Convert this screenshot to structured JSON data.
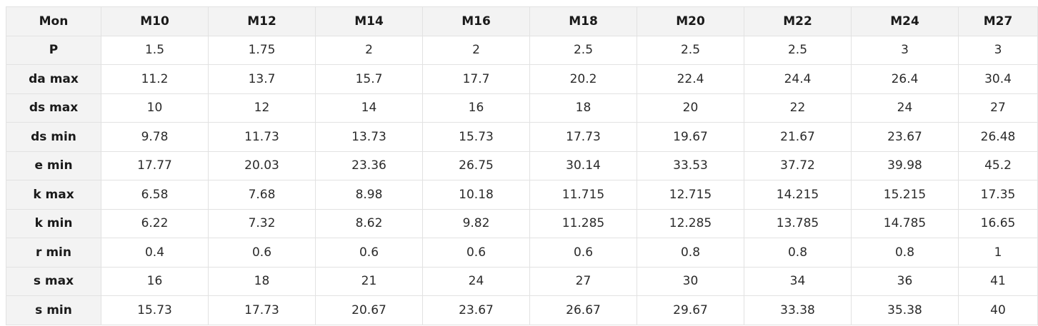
{
  "table": {
    "columns": [
      "Mon",
      "M10",
      "M12",
      "M14",
      "M16",
      "M18",
      "M20",
      "M22",
      "M24",
      "M27"
    ],
    "rows": [
      {
        "label": "P",
        "values": [
          "1.5",
          "1.75",
          "2",
          "2",
          "2.5",
          "2.5",
          "2.5",
          "3",
          "3"
        ]
      },
      {
        "label": "da max",
        "values": [
          "11.2",
          "13.7",
          "15.7",
          "17.7",
          "20.2",
          "22.4",
          "24.4",
          "26.4",
          "30.4"
        ]
      },
      {
        "label": "ds max",
        "values": [
          "10",
          "12",
          "14",
          "16",
          "18",
          "20",
          "22",
          "24",
          "27"
        ]
      },
      {
        "label": "ds min",
        "values": [
          "9.78",
          "11.73",
          "13.73",
          "15.73",
          "17.73",
          "19.67",
          "21.67",
          "23.67",
          "26.48"
        ]
      },
      {
        "label": "e min",
        "values": [
          "17.77",
          "20.03",
          "23.36",
          "26.75",
          "30.14",
          "33.53",
          "37.72",
          "39.98",
          "45.2"
        ]
      },
      {
        "label": "k max",
        "values": [
          "6.58",
          "7.68",
          "8.98",
          "10.18",
          "11.715",
          "12.715",
          "14.215",
          "15.215",
          "17.35"
        ]
      },
      {
        "label": "k min",
        "values": [
          "6.22",
          "7.32",
          "8.62",
          "9.82",
          "11.285",
          "12.285",
          "13.785",
          "14.785",
          "16.65"
        ]
      },
      {
        "label": "r min",
        "values": [
          "0.4",
          "0.6",
          "0.6",
          "0.6",
          "0.6",
          "0.8",
          "0.8",
          "0.8",
          "1"
        ]
      },
      {
        "label": "s max",
        "values": [
          "16",
          "18",
          "21",
          "24",
          "27",
          "30",
          "34",
          "36",
          "41"
        ]
      },
      {
        "label": "s min",
        "values": [
          "15.73",
          "17.73",
          "20.67",
          "23.67",
          "26.67",
          "29.67",
          "33.38",
          "35.38",
          "40"
        ]
      }
    ]
  }
}
